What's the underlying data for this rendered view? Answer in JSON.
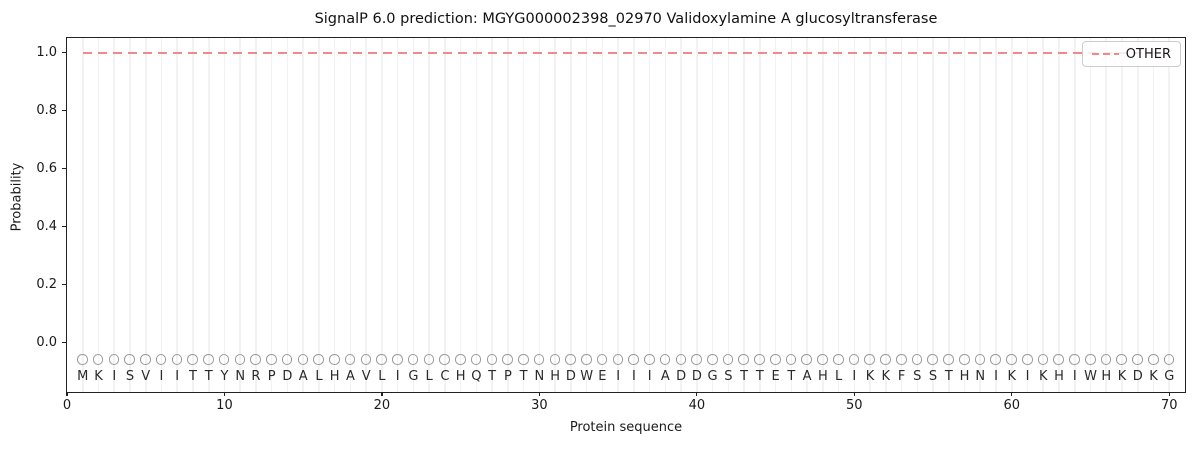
{
  "title": "SignalP 6.0 prediction: MGYG000002398_02970 Validoxylamine A glucosyltransferase",
  "chart_data": {
    "type": "line",
    "title": "SignalP 6.0 prediction: MGYG000002398_02970 Validoxylamine A glucosyltransferase",
    "xlabel": "Protein sequence",
    "ylabel": "Probability",
    "xlim": [
      0,
      71
    ],
    "ylim": [
      -0.17,
      1.05
    ],
    "x_ticks": [
      0,
      10,
      20,
      30,
      40,
      50,
      60,
      70
    ],
    "y_ticks": [
      {
        "label": "0.0",
        "value": 0.0
      },
      {
        "label": "0.2",
        "value": 0.2
      },
      {
        "label": "0.4",
        "value": 0.4
      },
      {
        "label": "0.6",
        "value": 0.6
      },
      {
        "label": "0.8",
        "value": 0.8
      },
      {
        "label": "1.0",
        "value": 1.0
      }
    ],
    "grid": {
      "vertical_line_per_residue": true,
      "horizontal": false,
      "color": "#f2f2f2"
    },
    "series": [
      {
        "name": "OTHER",
        "style": "dashed",
        "color": "#f08a8a",
        "x_start": 1,
        "x_end": 70,
        "constant_value": 1.0,
        "values": [
          1.0,
          1.0,
          1.0,
          1.0,
          1.0,
          1.0,
          1.0,
          1.0,
          1.0,
          1.0,
          1.0,
          1.0,
          1.0,
          1.0,
          1.0,
          1.0,
          1.0,
          1.0,
          1.0,
          1.0,
          1.0,
          1.0,
          1.0,
          1.0,
          1.0,
          1.0,
          1.0,
          1.0,
          1.0,
          1.0,
          1.0,
          1.0,
          1.0,
          1.0,
          1.0,
          1.0,
          1.0,
          1.0,
          1.0,
          1.0,
          1.0,
          1.0,
          1.0,
          1.0,
          1.0,
          1.0,
          1.0,
          1.0,
          1.0,
          1.0,
          1.0,
          1.0,
          1.0,
          1.0,
          1.0,
          1.0,
          1.0,
          1.0,
          1.0,
          1.0,
          1.0,
          1.0,
          1.0,
          1.0,
          1.0,
          1.0,
          1.0,
          1.0,
          1.0,
          1.0
        ]
      }
    ],
    "sequence": "MKISVIITTYNRPDALHAVLIGLCHQTPTNHDWEIIIADDGSTTETAHLIKKFSSTHNIKIKHIWHKDKG",
    "residue_markers": {
      "symbol": "open-circle",
      "edge_color": "#9a9a9a",
      "y_value": -0.06
    },
    "sequence_letter_y_value": -0.118,
    "legend": {
      "position": "upper-right",
      "entries": [
        {
          "label": "OTHER",
          "color": "#f08a8a",
          "style": "dashed"
        }
      ]
    }
  }
}
